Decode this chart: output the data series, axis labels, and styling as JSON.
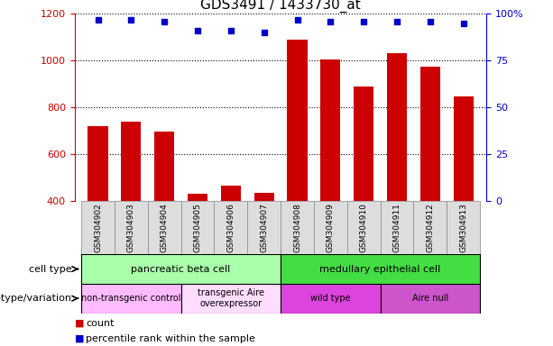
{
  "title": "GDS3491 / 1433730_at",
  "samples": [
    "GSM304902",
    "GSM304903",
    "GSM304904",
    "GSM304905",
    "GSM304906",
    "GSM304907",
    "GSM304908",
    "GSM304909",
    "GSM304910",
    "GSM304911",
    "GSM304912",
    "GSM304913"
  ],
  "counts": [
    720,
    740,
    695,
    430,
    465,
    435,
    1090,
    1005,
    890,
    1030,
    975,
    845
  ],
  "percentile_ranks": [
    97,
    97,
    96,
    91,
    91,
    90,
    97,
    96,
    96,
    96,
    96,
    95
  ],
  "ylim_left": [
    400,
    1200
  ],
  "ylim_right": [
    0,
    100
  ],
  "yticks_left": [
    400,
    600,
    800,
    1000,
    1200
  ],
  "yticks_right": [
    0,
    25,
    50,
    75,
    100
  ],
  "yticklabels_right": [
    "0",
    "25",
    "50",
    "75",
    "100%"
  ],
  "bar_color": "#cc0000",
  "dot_color": "#0000cc",
  "cell_type_groups": [
    {
      "label": "pancreatic beta cell",
      "start": 0,
      "end": 6,
      "color": "#aaffaa"
    },
    {
      "label": "medullary epithelial cell",
      "start": 6,
      "end": 12,
      "color": "#44dd44"
    }
  ],
  "genotype_groups": [
    {
      "label": "non-transgenic control",
      "start": 0,
      "end": 3,
      "color": "#ffbbff"
    },
    {
      "label": "transgenic Aire\noverexpressor",
      "start": 3,
      "end": 6,
      "color": "#ffddff"
    },
    {
      "label": "wild type",
      "start": 6,
      "end": 9,
      "color": "#dd44dd"
    },
    {
      "label": "Aire null",
      "start": 9,
      "end": 12,
      "color": "#cc55cc"
    }
  ],
  "legend_items": [
    {
      "label": "count",
      "color": "#cc0000"
    },
    {
      "label": "percentile rank within the sample",
      "color": "#0000cc"
    }
  ],
  "left_axis_color": "#cc0000",
  "right_axis_color": "#0000cc",
  "title_fontsize": 11,
  "tick_fontsize": 8,
  "annot_fontsize": 8
}
